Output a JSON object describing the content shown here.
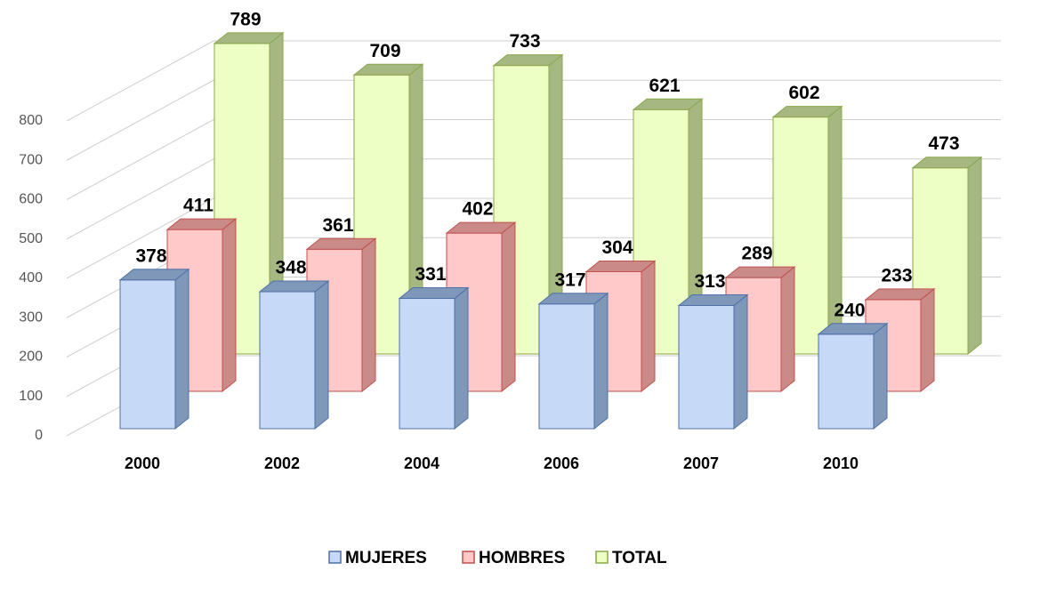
{
  "chart_data": {
    "type": "bar3d",
    "categories": [
      "2000",
      "2002",
      "2004",
      "2006",
      "2007",
      "2010"
    ],
    "series": [
      {
        "name": "MUJERES",
        "color": "#c6d9f7",
        "values": [
          378,
          348,
          331,
          317,
          313,
          240
        ]
      },
      {
        "name": "HOMBRES",
        "color": "#ffc9c9",
        "values": [
          411,
          361,
          402,
          304,
          289,
          233
        ]
      },
      {
        "name": "TOTAL",
        "color": "#edffc4",
        "values": [
          789,
          709,
          733,
          621,
          602,
          473
        ]
      }
    ],
    "ylim": [
      0,
      800
    ],
    "yticks": [
      0,
      100,
      200,
      300,
      400,
      500,
      600,
      700,
      800
    ],
    "grid": true,
    "legend": "bottom"
  }
}
